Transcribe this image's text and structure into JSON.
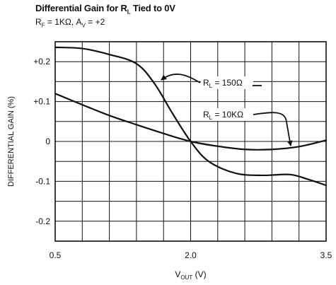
{
  "chart_data": {
    "type": "line",
    "title_main": "Differential Gain for R",
    "title_sub": "L",
    "title_end": " Tied to 0V",
    "subtitle": {
      "rf_label": "R",
      "rf_sub": "F",
      "rf_value": " = 1KΩ, A",
      "av_sub": "V",
      "av_value": " = +2"
    },
    "xlabel_main": "V",
    "xlabel_sub": "OUT",
    "xlabel_unit": " (V)",
    "ylabel": "DIFFERENTIAL GAIN (%)",
    "xlim": [
      0.5,
      3.5
    ],
    "ylim": [
      -0.25,
      0.25
    ],
    "x_ticks": [
      0.5,
      2.0,
      3.5
    ],
    "x_tick_labels": [
      "0.5",
      "2.0",
      "3.5"
    ],
    "y_ticks": [
      0.2,
      0.1,
      0,
      -0.1,
      -0.2
    ],
    "y_tick_labels": [
      "+0.2",
      "+0.1",
      "0",
      "-0.1",
      "-0.2"
    ],
    "grid": true,
    "x_grid_divisions": 10,
    "y_grid_divisions": 10,
    "series": [
      {
        "name": "150Ω",
        "label_prefix": "R",
        "label_sub": "L",
        "label_value": " = 150Ω",
        "x": [
          0.5,
          0.8,
          1.1,
          1.4,
          1.6,
          1.8,
          2.0,
          2.2,
          2.5,
          2.8,
          3.1,
          3.3,
          3.5
        ],
        "y": [
          0.236,
          0.233,
          0.218,
          0.195,
          0.145,
          0.07,
          0.0,
          -0.05,
          -0.08,
          -0.085,
          -0.083,
          -0.095,
          -0.11
        ]
      },
      {
        "name": "10KΩ",
        "label_prefix": "R",
        "label_sub": "L",
        "label_value": " = 10KΩ",
        "x": [
          0.5,
          0.8,
          1.1,
          1.4,
          1.7,
          2.0,
          2.3,
          2.6,
          2.9,
          3.2,
          3.5
        ],
        "y": [
          0.12,
          0.092,
          0.065,
          0.042,
          0.02,
          0.0,
          -0.012,
          -0.02,
          -0.02,
          -0.013,
          0.003
        ]
      }
    ]
  }
}
